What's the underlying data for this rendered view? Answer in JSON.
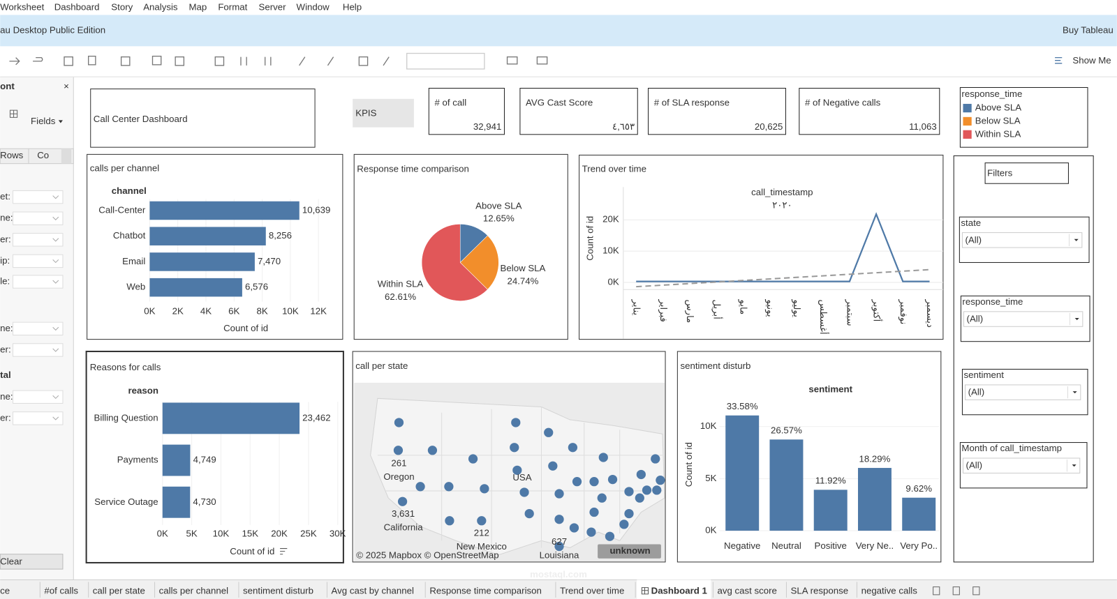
{
  "menu": [
    "Worksheet",
    "Dashboard",
    "Story",
    "Analysis",
    "Map",
    "Format",
    "Server",
    "Window",
    "Help"
  ],
  "title_bar": {
    "app": "au Desktop Public Edition",
    "buy": "Buy Tableau"
  },
  "toolbar": {
    "show_me": "Show Me"
  },
  "side_panel": {
    "heading": "ont",
    "close": "×",
    "fields": "Fields",
    "tabs": [
      "Rows",
      "Co"
    ],
    "filter_labels": [
      "et:",
      "ne:",
      "er:",
      "ip:",
      "le:",
      "ne:",
      "er:"
    ],
    "section": "tal",
    "section_labels": [
      "ne:",
      "er:"
    ],
    "clear": "Clear"
  },
  "dashboard": {
    "title": "Call Center Dashboard",
    "kpi_header": "KPIS",
    "kpis": [
      {
        "label": "# of call",
        "value": "32,941"
      },
      {
        "label": "AVG Cast Score",
        "value": "٤,٦٥٣"
      },
      {
        "label": "# of SLA response",
        "value": "20,625"
      },
      {
        "label": "# of Negative calls",
        "value": "11,063"
      }
    ],
    "legend": {
      "title": "response_time",
      "items": [
        "Above SLA",
        "Below SLA",
        "Within SLA"
      ]
    },
    "filters": {
      "title": "Filters",
      "items": [
        {
          "label": "state",
          "value": "(All)"
        },
        {
          "label": "response_time",
          "value": "(All)"
        },
        {
          "label": "sentiment",
          "value": "(All)"
        },
        {
          "label": "Month of call_timestamp",
          "value": "(All)"
        }
      ]
    },
    "map": {
      "title": "call per state",
      "center_label": "USA",
      "points": [
        {
          "value": 261,
          "label": "261",
          "state": "Oregon"
        },
        {
          "value": 3631,
          "label": "3,631",
          "state": "California"
        },
        {
          "value": 212,
          "label": "212",
          "state": "New Mexico"
        },
        {
          "value": 627,
          "label": "627",
          "state": "Louisiana"
        }
      ],
      "attribution": "© 2025 Mapbox © OpenStreetMap",
      "badge": "unknown"
    }
  },
  "chart_data": [
    {
      "type": "hbar",
      "title": "calls per channel",
      "category_header": "channel",
      "x_label": "Count of id",
      "categories": [
        "Call-Center",
        "Chatbot",
        "Email",
        "Web"
      ],
      "values": [
        10639,
        8256,
        7470,
        6576
      ],
      "value_labels": [
        "10,639",
        "8,256",
        "7,470",
        "6,576"
      ],
      "color": "#4e79a7",
      "xlim": [
        0,
        12000
      ],
      "xticks": [
        {
          "value": 0,
          "label": "0K"
        },
        {
          "value": 2000,
          "label": "2K"
        },
        {
          "value": 4000,
          "label": "4K"
        },
        {
          "value": 6000,
          "label": "6K"
        },
        {
          "value": 8000,
          "label": "8K"
        },
        {
          "value": 10000,
          "label": "10K"
        },
        {
          "value": 12000,
          "label": "12K"
        }
      ]
    },
    {
      "type": "pie",
      "title": "Response time comparison",
      "categories": [
        "Above SLA",
        "Below SLA",
        "Within SLA"
      ],
      "values": [
        12.65,
        24.74,
        62.61
      ],
      "value_labels": [
        "12.65%",
        "24.74%",
        "62.61%"
      ],
      "colors": [
        "#4e79a7",
        "#f28e2b",
        "#e15759"
      ]
    },
    {
      "type": "line",
      "title": "Trend over time",
      "x_header": "call_timestamp",
      "x_subheader": "٢٠٢٠",
      "y_label": "Count of id",
      "categories": [
        "يناير",
        "فبراير",
        "مارس",
        "أبريل",
        "مايو",
        "يونيو",
        "يوليو",
        "أغسطس",
        "سبتمبر",
        "أكتوبر",
        "نوفمبر",
        "ديسمبر"
      ],
      "values": [
        300,
        300,
        300,
        300,
        300,
        300,
        300,
        300,
        300,
        21800,
        300,
        300
      ],
      "color": "#4e79a7",
      "ylim": [
        -2270,
        30450
      ],
      "yticks": [
        {
          "value": 0,
          "label": "0K"
        },
        {
          "value": 10000,
          "label": "10K"
        },
        {
          "value": 20000,
          "label": "20K"
        }
      ],
      "grid": true
    },
    {
      "type": "hbar",
      "title": "Reasons for calls",
      "category_header": "reason",
      "x_label": "Count of id",
      "categories": [
        "Billing Question",
        "Payments",
        "Service Outage"
      ],
      "values": [
        23462,
        4749,
        4730
      ],
      "value_labels": [
        "23,462",
        "4,749",
        "4,730"
      ],
      "color": "#4e79a7",
      "xlim": [
        0,
        30000
      ],
      "xticks": [
        {
          "value": 0,
          "label": "0K"
        },
        {
          "value": 5000,
          "label": "5K"
        },
        {
          "value": 10000,
          "label": "10K"
        },
        {
          "value": 15000,
          "label": "15K"
        },
        {
          "value": 20000,
          "label": "20K"
        },
        {
          "value": 25000,
          "label": "25K"
        },
        {
          "value": 30000,
          "label": "30K"
        }
      ]
    },
    {
      "type": "vbar",
      "title": "sentiment disturb",
      "category_header": "sentiment",
      "y_label": "Count of id",
      "categories": [
        "Negative",
        "Neutral",
        "Positive",
        "Very Ne..",
        "Very Po.."
      ],
      "values": [
        11063,
        8752,
        3927,
        6025,
        3169
      ],
      "percent_labels": [
        "33.58%",
        "26.57%",
        "11.92%",
        "18.29%",
        "9.62%"
      ],
      "color": "#4e79a7",
      "ylim": [
        0,
        12700
      ],
      "yticks": [
        {
          "value": 0,
          "label": "0K"
        },
        {
          "value": 5000,
          "label": "5K"
        },
        {
          "value": 10000,
          "label": "10K"
        }
      ]
    }
  ],
  "tabs": [
    "ce",
    "#of calls",
    "call per state",
    "calls per channel",
    "sentiment disturb",
    "Avg cast by channel",
    "Response time comparison",
    "Trend over time",
    "Dashboard 1",
    "avg cast score",
    "SLA response",
    "negative calls"
  ],
  "watermark": "mostaql.com"
}
